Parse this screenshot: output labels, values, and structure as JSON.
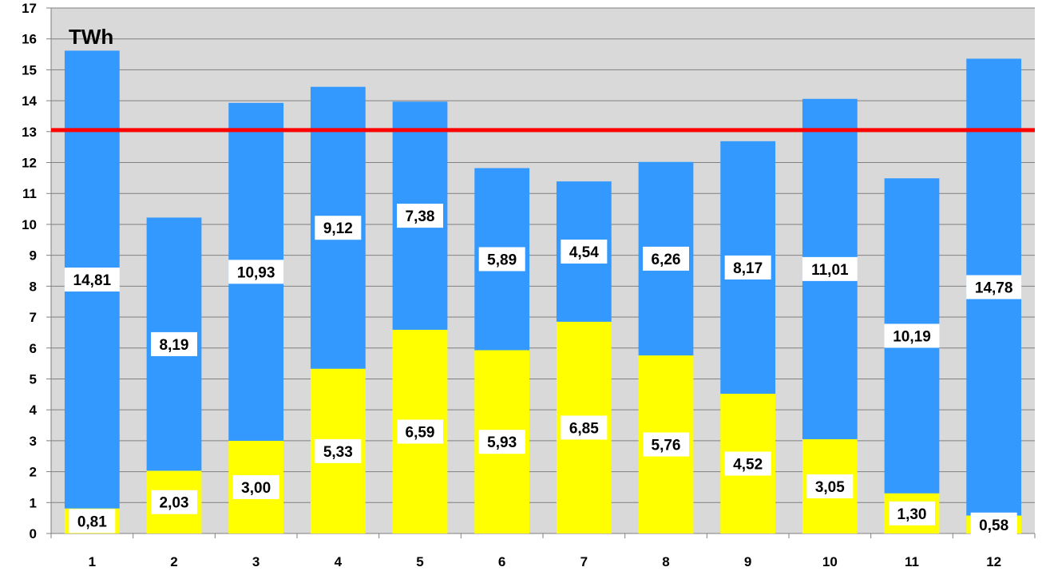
{
  "chart_data": {
    "type": "bar",
    "stacked": true,
    "unit_label": "TWh",
    "categories": [
      "1",
      "2",
      "3",
      "4",
      "5",
      "6",
      "7",
      "8",
      "9",
      "10",
      "11",
      "12"
    ],
    "series": [
      {
        "color": "#ffff00",
        "values": [
          0.81,
          2.03,
          3.0,
          5.33,
          6.59,
          5.93,
          6.85,
          5.76,
          4.52,
          3.05,
          1.3,
          0.58
        ],
        "labels": [
          "0,81",
          "2,03",
          "3,00",
          "5,33",
          "6,59",
          "5,93",
          "6,85",
          "5,76",
          "4,52",
          "3,05",
          "1,30",
          "0,58"
        ]
      },
      {
        "color": "#3399ff",
        "values": [
          14.81,
          8.19,
          10.93,
          9.12,
          7.38,
          5.89,
          4.54,
          6.26,
          8.17,
          11.01,
          10.19,
          14.78
        ],
        "labels": [
          "14,81",
          "8,19",
          "10,93",
          "9,12",
          "7,38",
          "5,89",
          "4,54",
          "6,26",
          "8,17",
          "11,01",
          "10,19",
          "14,78"
        ]
      }
    ],
    "reference_line": {
      "value": 13.05,
      "color": "#ff0000"
    },
    "ylim": [
      0,
      17
    ],
    "yticks": [
      0,
      1,
      2,
      3,
      4,
      5,
      6,
      7,
      8,
      9,
      10,
      11,
      12,
      13,
      14,
      15,
      16,
      17
    ],
    "grid": true,
    "plot_background": "#d9d9d9",
    "legend": "none"
  }
}
